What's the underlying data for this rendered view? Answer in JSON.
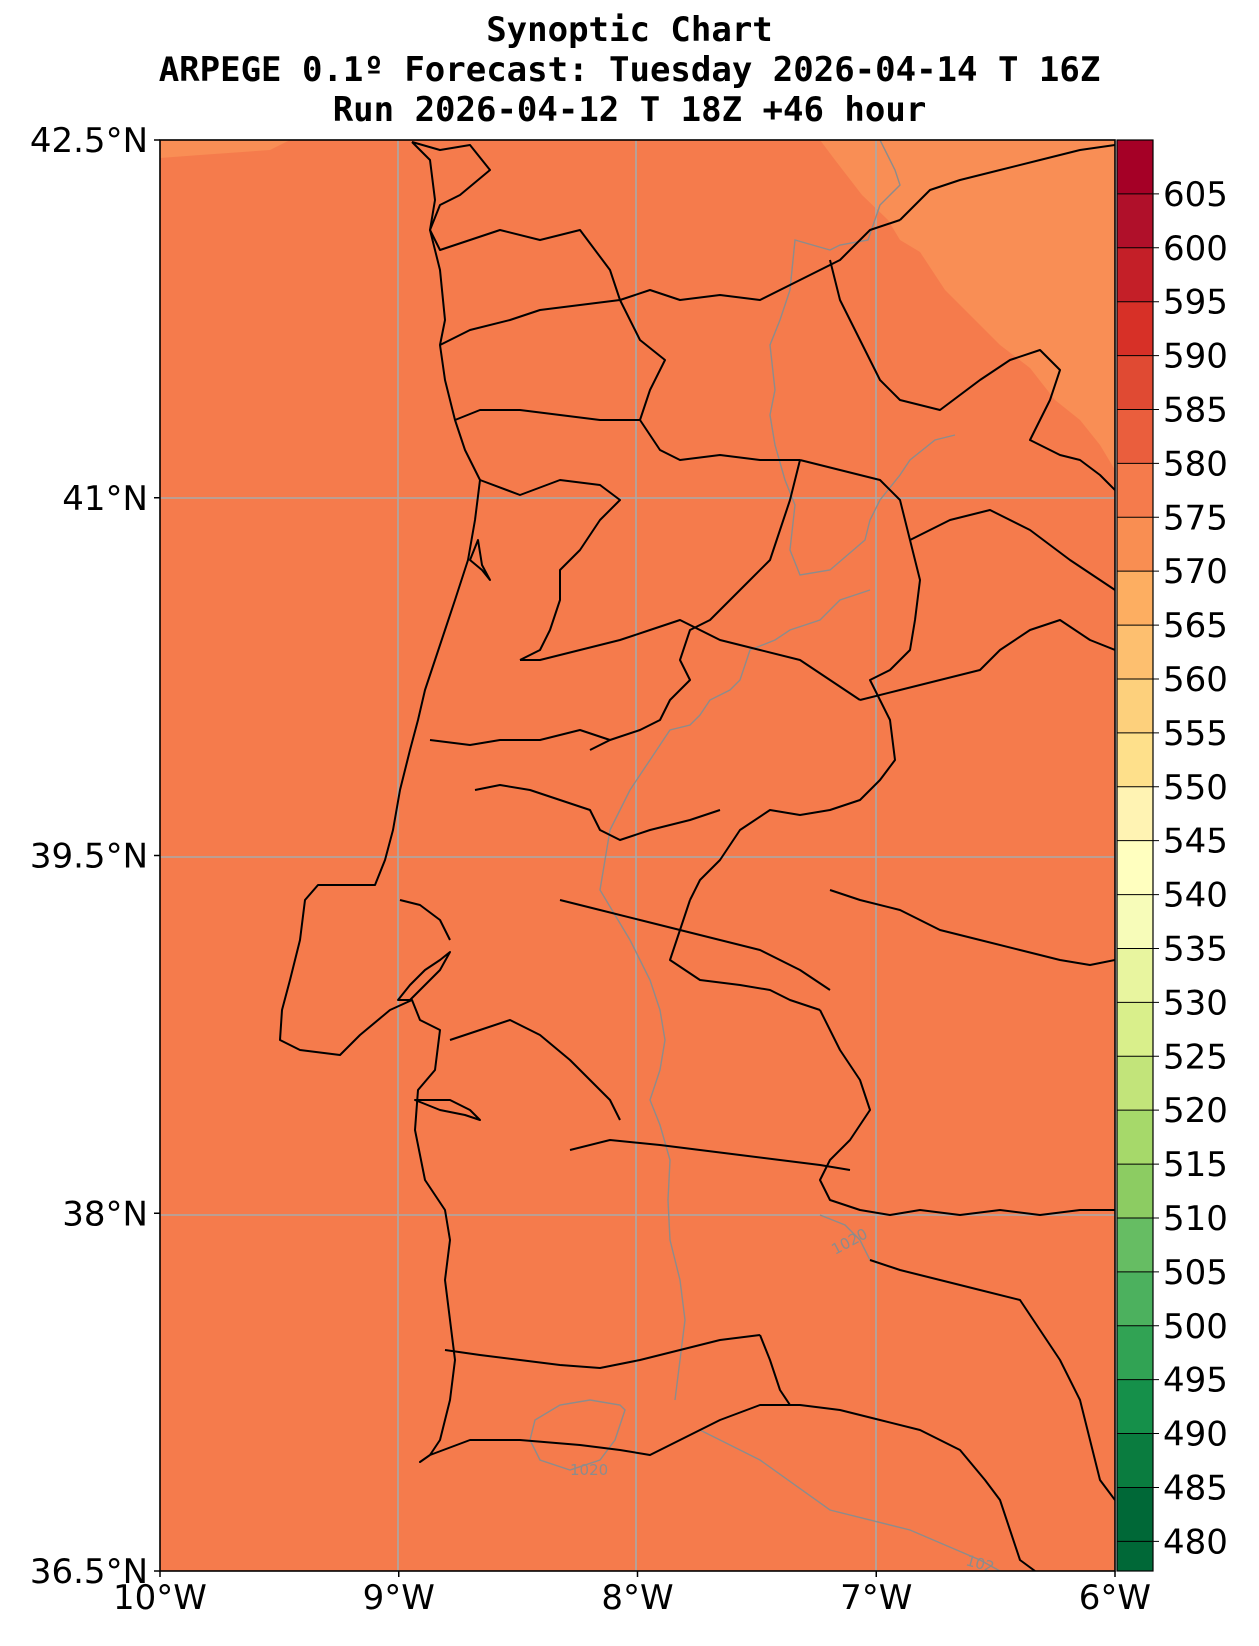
{
  "header": {
    "title": "Synoptic Chart",
    "subtitle": "ARPEGE 0.1º Forecast: Tuesday 2026-04-14 T 16Z",
    "run": "Run 2026-04-12 T 18Z +46 hour"
  },
  "map": {
    "extent": {
      "lon": [
        -10,
        -6
      ],
      "lat": [
        36.5,
        42.5
      ]
    },
    "lon_ticks": [
      {
        "value": -10,
        "label": "10°W"
      },
      {
        "value": -9,
        "label": "9°W"
      },
      {
        "value": -8,
        "label": "8°W"
      },
      {
        "value": -7,
        "label": "7°W"
      },
      {
        "value": -6,
        "label": "6°W"
      }
    ],
    "lat_ticks": [
      {
        "value": 42.5,
        "label": "42.5°N"
      },
      {
        "value": 41,
        "label": "41°N"
      },
      {
        "value": 39.5,
        "label": "39.5°N"
      },
      {
        "value": 38,
        "label": "38°N"
      },
      {
        "value": 36.5,
        "label": "36.5°N"
      }
    ],
    "grid": true,
    "isobar_labels": [
      "1020",
      "1020",
      "102"
    ],
    "fill_colors": {
      "base": "#f57b4c",
      "light": "#f98e55",
      "outer_left": "#f98e55"
    }
  },
  "colorbar": {
    "levels": [
      480,
      485,
      490,
      495,
      500,
      505,
      510,
      515,
      520,
      525,
      530,
      535,
      540,
      545,
      550,
      555,
      560,
      565,
      570,
      575,
      580,
      585,
      590,
      595,
      600,
      605
    ],
    "colors": [
      "#006837",
      "#0a7c3f",
      "#15904a",
      "#31a354",
      "#4cb15e",
      "#66bd63",
      "#8ccc62",
      "#a6d96a",
      "#c2e47a",
      "#d9ef8b",
      "#e8f59f",
      "#f7fcb9",
      "#ffffbf",
      "#fff3b3",
      "#fee08b",
      "#fdd07c",
      "#fdbf6f",
      "#fdae61",
      "#f98e52",
      "#f57b4c",
      "#ea5e3d",
      "#e04a33",
      "#d73027",
      "#c41f28",
      "#b0102a",
      "#a50026"
    ]
  }
}
